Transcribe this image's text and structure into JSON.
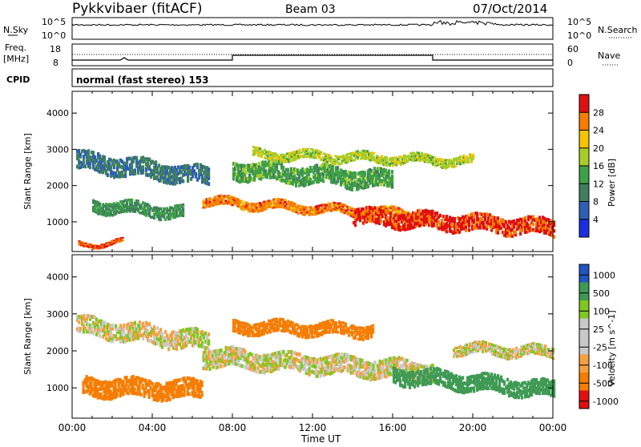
{
  "header": {
    "radar": "Pykkvibaer (fitACF)",
    "beam": "Beam 03",
    "date": "07/Oct/2014"
  },
  "panels": {
    "nsky": {
      "left_label": "N.Sky",
      "left_ticks": [
        "10^5",
        "10^0"
      ],
      "right_ticks": [
        "10^5",
        "10^0"
      ],
      "right_label": "N.Search"
    },
    "freq": {
      "left_label_1": "Freq.",
      "left_label_2": "[MHz]",
      "left_ticks": [
        "18",
        "8"
      ],
      "right_ticks": [
        "60",
        "0"
      ],
      "right_label": "Nave"
    },
    "cpid": {
      "left_label": "CPID",
      "text": "normal (fast stereo) 153"
    }
  },
  "colors": {
    "power": [
      "#1b2ee0",
      "#2e5fb5",
      "#3f7f5e",
      "#3fa046",
      "#a8cc2a",
      "#f5c400",
      "#f57d00",
      "#e01010"
    ],
    "velocity": [
      "#e01010",
      "#f57d00",
      "#f5a040",
      "#c8c8c8",
      "#c8c8c8",
      "#7ec820",
      "#3f9a54",
      "#2255c0"
    ]
  },
  "chart_data": [
    {
      "type": "heatmap",
      "title": "Power",
      "xlabel": "Time UT",
      "ylabel": "Slant Range [km]",
      "x_ticks": [
        "00:00",
        "04:00",
        "08:00",
        "12:00",
        "16:00",
        "20:00",
        "00:00"
      ],
      "xlim_hours": [
        0,
        24
      ],
      "y_ticks": [
        "1000",
        "2000",
        "3000",
        "4000"
      ],
      "ylim_km": [
        180,
        4600
      ],
      "colorbar": {
        "label": "Power [dB]",
        "ticks": [
          "4",
          "8",
          "12",
          "16",
          "20",
          "24",
          "28"
        ],
        "range": [
          0,
          32
        ]
      },
      "bands": [
        {
          "t0": 0.2,
          "t1": 6.8,
          "r_start": 2750,
          "r_end": 2300,
          "width": 500,
          "value": 9
        },
        {
          "t0": 1.0,
          "t1": 5.5,
          "r_start": 1500,
          "r_end": 1300,
          "width": 350,
          "value": 12
        },
        {
          "t0": 0.3,
          "t1": 2.5,
          "r_start": 400,
          "r_end": 450,
          "width": 120,
          "value": 28
        },
        {
          "t0": 6.5,
          "t1": 18.0,
          "r_start": 1600,
          "r_end": 1200,
          "width": 250,
          "value": 26
        },
        {
          "t0": 8.0,
          "t1": 16.0,
          "r_start": 2500,
          "r_end": 2200,
          "width": 500,
          "value": 14
        },
        {
          "t0": 14.0,
          "t1": 24.0,
          "r_start": 1200,
          "r_end": 900,
          "width": 450,
          "value": 29
        },
        {
          "t0": 9.0,
          "t1": 20.0,
          "r_start": 2900,
          "r_end": 2700,
          "width": 250,
          "value": 18
        }
      ]
    },
    {
      "type": "heatmap",
      "title": "Velocity",
      "xlabel": "Time UT",
      "ylabel": "Slant Range [km]",
      "x_ticks": [
        "00:00",
        "04:00",
        "08:00",
        "12:00",
        "16:00",
        "20:00",
        "00:00"
      ],
      "xlim_hours": [
        0,
        24
      ],
      "y_ticks": [
        "1000",
        "2000",
        "3000",
        "4000"
      ],
      "ylim_km": [
        180,
        4600
      ],
      "colorbar": {
        "label": "Velocity [m s^-1]",
        "ticks": [
          "1000",
          "500",
          "100",
          "25",
          "-25",
          "-100",
          "-500",
          "-1000"
        ]
      },
      "bands": [
        {
          "t0": 0.2,
          "t1": 6.8,
          "r_start": 2750,
          "r_end": 2300,
          "width": 500,
          "value": 0
        },
        {
          "t0": 0.5,
          "t1": 6.5,
          "r_start": 1100,
          "r_end": 1000,
          "width": 500,
          "value": -300
        },
        {
          "t0": 6.5,
          "t1": 18.0,
          "r_start": 1900,
          "r_end": 1500,
          "width": 500,
          "value": 0
        },
        {
          "t0": 8.0,
          "t1": 15.0,
          "r_start": 2700,
          "r_end": 2600,
          "width": 350,
          "value": -400
        },
        {
          "t0": 16.0,
          "t1": 24.0,
          "r_start": 1400,
          "r_end": 1000,
          "width": 450,
          "value": 300
        },
        {
          "t0": 19.0,
          "t1": 24.0,
          "r_start": 2100,
          "r_end": 2000,
          "width": 300,
          "value": 0
        }
      ]
    }
  ]
}
